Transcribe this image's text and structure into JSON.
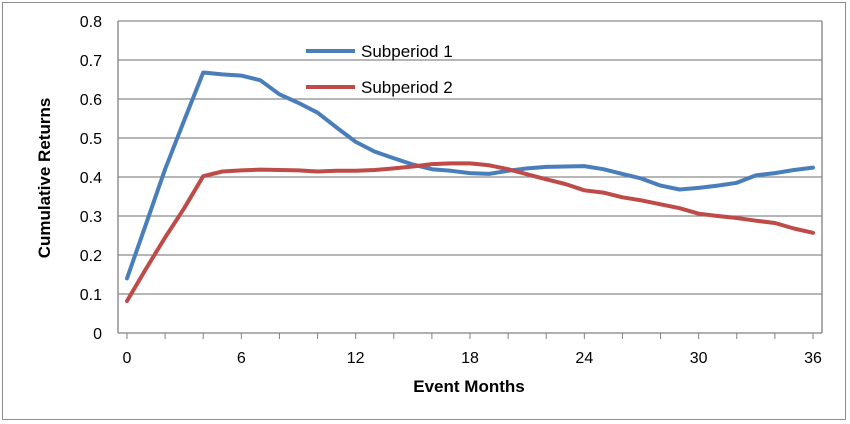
{
  "chart_data": {
    "type": "line",
    "title": "",
    "xlabel": "Event Months",
    "ylabel": "Cumulative Returns",
    "xlim": [
      0,
      36
    ],
    "ylim": [
      0,
      0.8
    ],
    "xticks": [
      0,
      6,
      12,
      18,
      24,
      30,
      36
    ],
    "yticks": [
      0,
      0.1,
      0.2,
      0.3,
      0.4,
      0.5,
      0.6,
      0.7,
      0.8
    ],
    "ytick_labels": [
      "0",
      "0.1",
      "0.2",
      "0.3",
      "0.4",
      "0.5",
      "0.6",
      "0.7",
      "0.8"
    ],
    "grid": "horizontal",
    "legend_position": "top-center",
    "x": [
      0,
      1,
      2,
      3,
      4,
      5,
      6,
      7,
      8,
      9,
      10,
      11,
      12,
      13,
      14,
      15,
      16,
      17,
      18,
      19,
      20,
      21,
      22,
      23,
      24,
      25,
      26,
      27,
      28,
      29,
      30,
      31,
      32,
      33,
      34,
      35,
      36
    ],
    "series": [
      {
        "name": "Subperiod 1",
        "color": "#4a7ebb",
        "values": [
          0.14,
          0.28,
          0.42,
          0.545,
          0.668,
          0.663,
          0.66,
          0.648,
          0.612,
          0.59,
          0.565,
          0.527,
          0.49,
          0.465,
          0.448,
          0.432,
          0.42,
          0.416,
          0.41,
          0.408,
          0.416,
          0.422,
          0.426,
          0.427,
          0.428,
          0.42,
          0.408,
          0.396,
          0.378,
          0.368,
          0.372,
          0.378,
          0.385,
          0.404,
          0.41,
          0.418,
          0.424
        ]
      },
      {
        "name": "Subperiod 2",
        "color": "#be4b48",
        "values": [
          0.082,
          0.165,
          0.245,
          0.32,
          0.402,
          0.414,
          0.417,
          0.419,
          0.418,
          0.417,
          0.414,
          0.416,
          0.416,
          0.418,
          0.422,
          0.427,
          0.433,
          0.435,
          0.435,
          0.43,
          0.42,
          0.407,
          0.394,
          0.382,
          0.366,
          0.36,
          0.348,
          0.34,
          0.33,
          0.32,
          0.306,
          0.3,
          0.295,
          0.288,
          0.282,
          0.268,
          0.257
        ]
      }
    ]
  }
}
